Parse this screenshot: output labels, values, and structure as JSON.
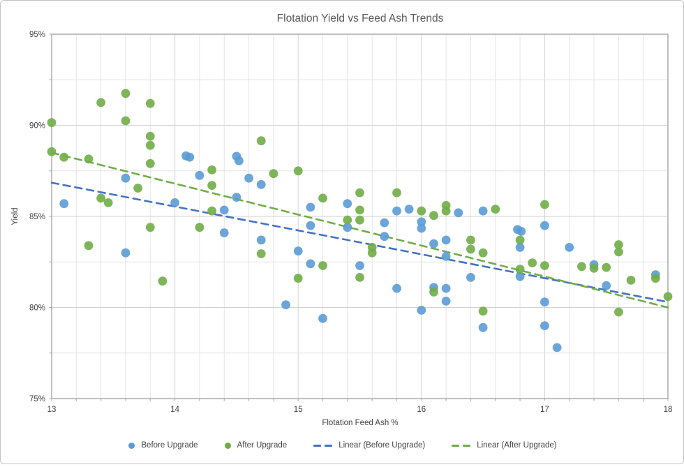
{
  "title": "Flotation Yield vs Feed Ash Trends",
  "chart_data": {
    "type": "scatter",
    "title": "Flotation Yield vs Feed Ash Trends",
    "xlabel": "Flotation Feed Ash %",
    "ylabel": "Yield",
    "xlim": [
      13,
      18
    ],
    "ylim": [
      75,
      95
    ],
    "x_tick_labels": [
      "13",
      "14",
      "15",
      "16",
      "17",
      "18"
    ],
    "y_tick_labels": [
      "75%",
      "80%",
      "85%",
      "90%",
      "95%"
    ],
    "grid": {
      "x_minor_step": 0.2,
      "y_minor_step": 2.5,
      "visible": true
    },
    "legend_position": "bottom",
    "series": [
      {
        "name": "Before Upgrade",
        "color": "#5B9BD5",
        "points": [
          [
            13.1,
            85.7
          ],
          [
            13.6,
            87.1
          ],
          [
            13.6,
            83.0
          ],
          [
            14.0,
            85.75
          ],
          [
            14.09,
            88.32
          ],
          [
            14.12,
            88.25
          ],
          [
            14.2,
            87.25
          ],
          [
            14.4,
            85.35
          ],
          [
            14.4,
            84.1
          ],
          [
            14.5,
            88.3
          ],
          [
            14.52,
            88.05
          ],
          [
            14.5,
            86.05
          ],
          [
            14.6,
            87.1
          ],
          [
            14.7,
            86.75
          ],
          [
            14.7,
            83.7
          ],
          [
            14.9,
            80.15
          ],
          [
            15.0,
            83.1
          ],
          [
            15.1,
            85.5
          ],
          [
            15.1,
            84.5
          ],
          [
            15.1,
            82.4
          ],
          [
            15.2,
            79.4
          ],
          [
            15.4,
            85.7
          ],
          [
            15.4,
            84.4
          ],
          [
            15.5,
            82.3
          ],
          [
            15.7,
            84.65
          ],
          [
            15.7,
            83.9
          ],
          [
            15.8,
            85.3
          ],
          [
            15.8,
            81.05
          ],
          [
            15.9,
            85.4
          ],
          [
            16.0,
            84.7
          ],
          [
            16.0,
            84.35
          ],
          [
            16.0,
            79.85
          ],
          [
            16.1,
            83.5
          ],
          [
            16.1,
            81.1
          ],
          [
            16.2,
            83.7
          ],
          [
            16.2,
            82.8
          ],
          [
            16.2,
            81.05
          ],
          [
            16.2,
            80.35
          ],
          [
            16.3,
            85.2
          ],
          [
            16.4,
            81.65
          ],
          [
            16.5,
            85.3
          ],
          [
            16.5,
            78.9
          ],
          [
            16.78,
            84.28
          ],
          [
            16.81,
            84.18
          ],
          [
            16.8,
            83.3
          ],
          [
            16.8,
            81.7
          ],
          [
            17.0,
            84.5
          ],
          [
            17.0,
            80.3
          ],
          [
            17.0,
            79.0
          ],
          [
            17.1,
            77.8
          ],
          [
            17.2,
            83.3
          ],
          [
            17.4,
            82.35
          ],
          [
            17.5,
            81.2
          ],
          [
            17.9,
            81.8
          ]
        ]
      },
      {
        "name": "After Upgrade",
        "color": "#70AD47",
        "points": [
          [
            13.0,
            90.15
          ],
          [
            13.0,
            88.55
          ],
          [
            13.1,
            88.25
          ],
          [
            13.3,
            88.15
          ],
          [
            13.3,
            83.4
          ],
          [
            13.4,
            91.25
          ],
          [
            13.4,
            86.0
          ],
          [
            13.46,
            85.75
          ],
          [
            13.6,
            91.75
          ],
          [
            13.6,
            90.25
          ],
          [
            13.7,
            86.55
          ],
          [
            13.8,
            91.2
          ],
          [
            13.8,
            89.4
          ],
          [
            13.8,
            88.9
          ],
          [
            13.8,
            87.9
          ],
          [
            13.8,
            84.4
          ],
          [
            13.9,
            81.45
          ],
          [
            14.2,
            84.4
          ],
          [
            14.3,
            87.55
          ],
          [
            14.3,
            86.7
          ],
          [
            14.3,
            85.3
          ],
          [
            14.7,
            89.15
          ],
          [
            14.7,
            82.95
          ],
          [
            14.8,
            87.35
          ],
          [
            15.0,
            87.5
          ],
          [
            15.0,
            81.6
          ],
          [
            15.2,
            86.0
          ],
          [
            15.2,
            82.3
          ],
          [
            15.4,
            84.8
          ],
          [
            15.5,
            86.3
          ],
          [
            15.5,
            85.35
          ],
          [
            15.5,
            84.8
          ],
          [
            15.5,
            81.65
          ],
          [
            15.6,
            83.3
          ],
          [
            15.6,
            83.0
          ],
          [
            15.8,
            86.3
          ],
          [
            16.0,
            85.3
          ],
          [
            16.1,
            85.05
          ],
          [
            16.1,
            80.85
          ],
          [
            16.2,
            85.6
          ],
          [
            16.2,
            85.3
          ],
          [
            16.4,
            83.7
          ],
          [
            16.4,
            83.2
          ],
          [
            16.5,
            83.0
          ],
          [
            16.5,
            79.8
          ],
          [
            16.6,
            85.4
          ],
          [
            16.8,
            83.7
          ],
          [
            16.8,
            82.1
          ],
          [
            16.9,
            82.45
          ],
          [
            17.0,
            85.65
          ],
          [
            17.0,
            82.3
          ],
          [
            17.3,
            82.25
          ],
          [
            17.4,
            82.15
          ],
          [
            17.5,
            82.2
          ],
          [
            17.6,
            83.45
          ],
          [
            17.6,
            83.05
          ],
          [
            17.6,
            79.75
          ],
          [
            17.7,
            81.5
          ],
          [
            17.9,
            81.6
          ],
          [
            18.0,
            80.6
          ]
        ]
      }
    ],
    "trendlines": [
      {
        "name": "Linear (Before Upgrade)",
        "color": "#4472C4",
        "start": [
          13,
          86.85
        ],
        "end": [
          18,
          80.3
        ]
      },
      {
        "name": "Linear (After Upgrade)",
        "color": "#70AD47",
        "start": [
          13,
          88.5
        ],
        "end": [
          18,
          80.0
        ]
      }
    ],
    "legend": [
      "Before Upgrade",
      "After Upgrade",
      "Linear (Before Upgrade)",
      "Linear (After Upgrade)"
    ]
  },
  "colors": {
    "title": "#595959",
    "tick_label": "#404040",
    "axis_line": "#a6a6a6",
    "grid_minor": "#e4e4e4",
    "grid_major": "#d2d2d2"
  }
}
